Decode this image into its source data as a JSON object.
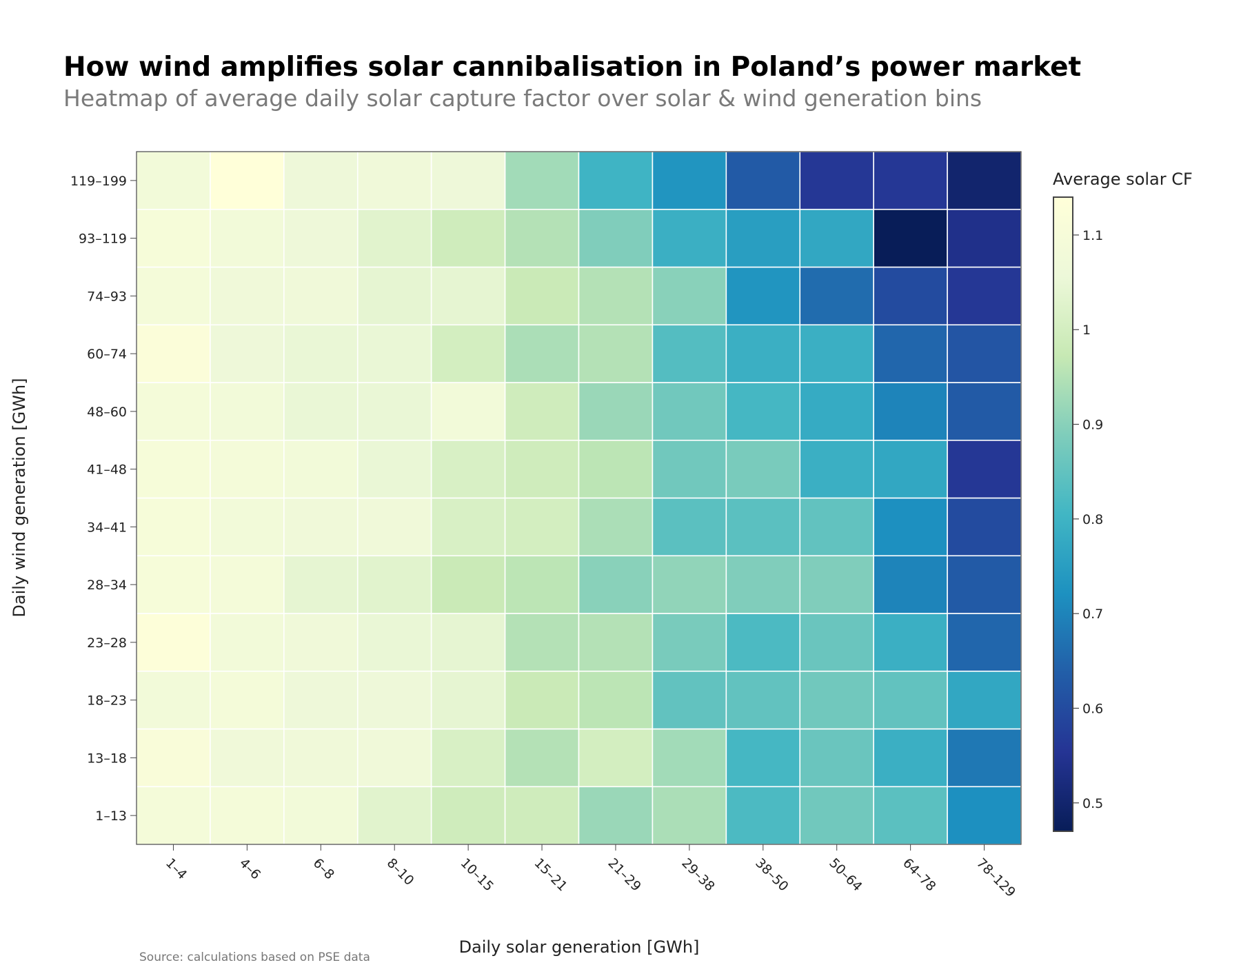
{
  "chart_data": {
    "type": "heatmap",
    "title": "How wind amplifies solar cannibalisation in Poland’s power market",
    "subtitle": "Heatmap of average daily solar capture factor over solar & wind generation bins",
    "xlabel": "Daily solar generation [GWh]",
    "ylabel": "Daily wind generation [GWh]",
    "source": "Source: calculations based on PSE data",
    "x_categories": [
      "1–4",
      "4–6",
      "6–8",
      "8–10",
      "10–15",
      "15–21",
      "21–29",
      "29–38",
      "38–50",
      "50–64",
      "64–78",
      "78–129"
    ],
    "y_categories": [
      "1–13",
      "13–18",
      "18–23",
      "23–28",
      "28–34",
      "34–41",
      "41–48",
      "48–60",
      "60–74",
      "74–93",
      "93–119",
      "119–199"
    ],
    "z": [
      [
        1.09,
        1.09,
        1.08,
        1.03,
        0.99,
        0.99,
        0.92,
        0.94,
        0.82,
        0.87,
        0.84,
        0.72
      ],
      [
        1.11,
        1.07,
        1.07,
        1.07,
        1.01,
        0.95,
        1.0,
        0.93,
        0.81,
        0.86,
        0.79,
        0.68
      ],
      [
        1.08,
        1.09,
        1.06,
        1.06,
        1.04,
        0.98,
        0.96,
        0.85,
        0.85,
        0.87,
        0.85,
        0.77
      ],
      [
        1.13,
        1.08,
        1.07,
        1.05,
        1.04,
        0.95,
        0.95,
        0.88,
        0.82,
        0.86,
        0.79,
        0.65
      ],
      [
        1.1,
        1.09,
        1.04,
        1.03,
        0.98,
        0.96,
        0.9,
        0.91,
        0.89,
        0.89,
        0.7,
        0.63
      ],
      [
        1.1,
        1.08,
        1.07,
        1.07,
        1.01,
        1.0,
        0.94,
        0.84,
        0.84,
        0.85,
        0.72,
        0.6
      ],
      [
        1.1,
        1.09,
        1.08,
        1.05,
        1.01,
        0.99,
        0.96,
        0.87,
        0.88,
        0.79,
        0.77,
        0.56
      ],
      [
        1.09,
        1.08,
        1.05,
        1.05,
        1.08,
        0.99,
        0.92,
        0.87,
        0.81,
        0.78,
        0.7,
        0.63
      ],
      [
        1.12,
        1.06,
        1.05,
        1.05,
        1.0,
        0.94,
        0.95,
        0.83,
        0.79,
        0.79,
        0.65,
        0.62
      ],
      [
        1.09,
        1.07,
        1.07,
        1.04,
        1.04,
        0.98,
        0.95,
        0.9,
        0.73,
        0.66,
        0.6,
        0.56
      ],
      [
        1.1,
        1.08,
        1.06,
        1.03,
        0.99,
        0.95,
        0.89,
        0.79,
        0.75,
        0.77,
        0.47,
        0.54
      ],
      [
        1.08,
        1.14,
        1.06,
        1.07,
        1.06,
        0.93,
        0.8,
        0.73,
        0.63,
        0.56,
        0.56,
        0.5
      ]
    ],
    "zlim": [
      0.47,
      1.14
    ],
    "colorscale": "YlGnBu",
    "colorbar": {
      "title": "Average solar CF",
      "ticks": [
        "0.5",
        "0.6",
        "0.7",
        "0.8",
        "0.9",
        "1",
        "1.1"
      ],
      "tick_values": [
        0.5,
        0.6,
        0.7,
        0.8,
        0.9,
        1.0,
        1.1
      ]
    },
    "grid": false
  }
}
